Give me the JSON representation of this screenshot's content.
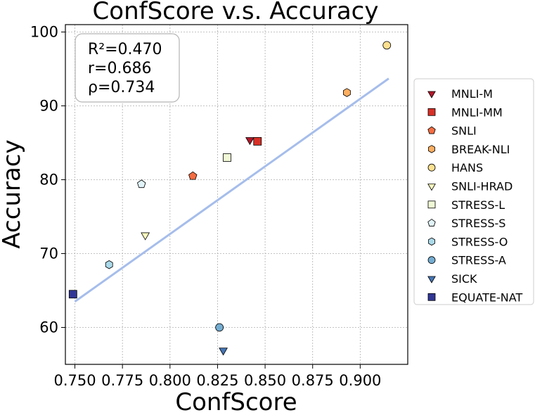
{
  "chart_data": {
    "type": "scatter",
    "title": "ConfScore  v.s.  Accuracy",
    "xlabel": "ConfScore",
    "ylabel": "Accuracy",
    "xlim": [
      0.745,
      0.925
    ],
    "ylim": [
      55,
      101
    ],
    "xticks": [
      0.75,
      0.775,
      0.8,
      0.825,
      0.85,
      0.875,
      0.9
    ],
    "xtick_labels": [
      "0.750",
      "0.775",
      "0.800",
      "0.825",
      "0.850",
      "0.875",
      "0.900"
    ],
    "yticks": [
      60,
      70,
      80,
      90,
      100
    ],
    "ytick_labels": [
      "60",
      "70",
      "80",
      "90",
      "100"
    ],
    "grid": true,
    "legend_position": "right, outside plot",
    "stats_box": [
      "R²=0.470",
      "r=0.686",
      "ρ=0.734"
    ],
    "fit_line": {
      "x": [
        0.75,
        0.915
      ],
      "y": [
        63.5,
        93.7
      ],
      "color": "#a6bdeb"
    },
    "series": [
      {
        "name": "MNLI-M",
        "marker": "triangle-down",
        "color": "#b2182b",
        "x": 0.842,
        "y": 85.4
      },
      {
        "name": "MNLI-MM",
        "marker": "square",
        "color": "#d73027",
        "x": 0.846,
        "y": 85.2
      },
      {
        "name": "SNLI",
        "marker": "pentagon",
        "color": "#f46d43",
        "x": 0.812,
        "y": 80.5
      },
      {
        "name": "BREAK-NLI",
        "marker": "hexagon",
        "color": "#fdae61",
        "x": 0.893,
        "y": 91.8
      },
      {
        "name": "HANS",
        "marker": "circle",
        "color": "#fee090",
        "x": 0.914,
        "y": 98.2
      },
      {
        "name": "SNLI-HRAD",
        "marker": "triangle-down",
        "color": "#ffffbf",
        "x": 0.787,
        "y": 72.5
      },
      {
        "name": "STRESS-L",
        "marker": "square",
        "color": "#f0f9d5",
        "x": 0.83,
        "y": 83.0
      },
      {
        "name": "STRESS-S",
        "marker": "pentagon",
        "color": "#e0f3f8",
        "x": 0.785,
        "y": 79.4
      },
      {
        "name": "STRESS-O",
        "marker": "hexagon",
        "color": "#abd9e9",
        "x": 0.768,
        "y": 68.5
      },
      {
        "name": "STRESS-A",
        "marker": "circle",
        "color": "#74add1",
        "x": 0.826,
        "y": 60.0
      },
      {
        "name": "SICK",
        "marker": "triangle-down",
        "color": "#4575b4",
        "x": 0.828,
        "y": 56.9
      },
      {
        "name": "EQUATE-NAT",
        "marker": "square",
        "color": "#313695",
        "x": 0.749,
        "y": 64.5
      }
    ]
  }
}
